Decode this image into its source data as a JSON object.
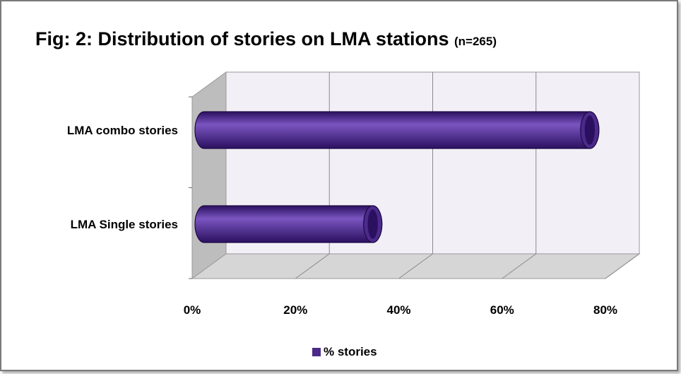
{
  "title": "Fig: 2: Distribution of stories on LMA stations",
  "title_note": "(n=265)",
  "colors": {
    "bar": "#4b2a8a",
    "bar_dark": "#2b1060",
    "bar_light": "#7a55c0",
    "wall": "#f2f0f6",
    "floor": "#d6d6d6",
    "side": "#bdbdbd"
  },
  "chart_data": {
    "type": "bar",
    "orientation": "horizontal",
    "categories": [
      "LMA combo stories",
      "LMA Single stories"
    ],
    "series": [
      {
        "name": "% stories",
        "values": [
          73,
          31
        ]
      }
    ],
    "xlim": [
      0,
      80
    ],
    "xticks": [
      "0%",
      "20%",
      "40%",
      "60%",
      "80%"
    ],
    "grid": true,
    "legend_position": "bottom"
  }
}
